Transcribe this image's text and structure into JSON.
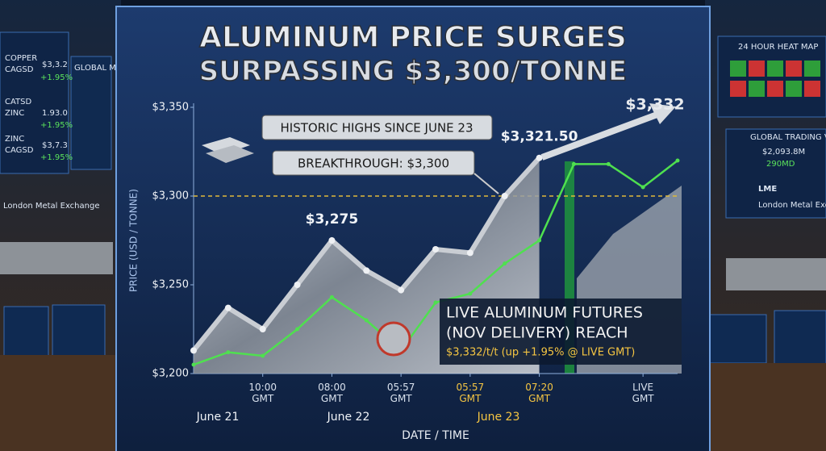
{
  "chart_data": {
    "type": "line",
    "title": "ALUMINUM PRICE SURGES",
    "subtitle": "SURPASSING $3,300/TONNE",
    "y_label": "PRICE (USD / TONNE)",
    "x_label": "DATE / TIME",
    "categories": [
      null,
      null,
      "10:00 GMT",
      null,
      "08:00 GMT",
      null,
      "05:57 GMT",
      null,
      "05:57 GMT",
      null,
      "07:20 GMT",
      null,
      null,
      "LIVE GMT",
      null
    ],
    "date_labels": [
      "June 21",
      "June 22",
      "June 23"
    ],
    "series": [
      {
        "color": "#c9cdd3",
        "values": [
          3213,
          3237,
          3225,
          3250,
          3275,
          3258,
          3247,
          3270,
          3268,
          3300,
          3321.5,
          null,
          null,
          null,
          null
        ],
        "value_labels": [
          null,
          null,
          null,
          null,
          "$3,275",
          null,
          null,
          null,
          null,
          null,
          "$3,321.50",
          null,
          null,
          null,
          null
        ]
      },
      {
        "color": "#4fe04f",
        "values": [
          3205,
          3212,
          3210,
          3225,
          3243,
          3230,
          3213,
          3240,
          3245,
          3262,
          3275,
          3318,
          3318,
          3305,
          3320
        ]
      }
    ],
    "threshold": 3300,
    "ylim": [
      3200,
      3350
    ],
    "yticks": [
      {
        "value": 3200,
        "label": "$3,200"
      },
      {
        "value": 3250,
        "label": "$3,250"
      },
      {
        "value": 3300,
        "label": "$3,300"
      },
      {
        "value": 3350,
        "label": "$3,350"
      }
    ],
    "annotations": {
      "historic": "HISTORIC HIGHS SINCE JUNE 23",
      "breakthrough": "BREAKTHROUGH: $3,300",
      "target": "$3,332",
      "live_1": "LIVE ALUMINUM FUTURES",
      "live_2": "(NOV DELIVERY) REACH",
      "live_3": "$3,332/t/t (up +1.95% @ LIVE GMT)"
    }
  },
  "left_panel": [
    "COPPER",
    "CAGSD",
    "$3,3.2",
    "+1.95%",
    "CATSD",
    "ZINC",
    "1.93.0",
    "+1.95%",
    "ZINC",
    "CAGSD",
    "$3,7.3",
    "+1.95%",
    "GLOBAL METAL",
    "London Metal Exchange"
  ],
  "right_panel": [
    "24 HOUR HEAT MAP",
    "GLOBAL TRADING VOLUME",
    "$2,093.8M",
    "290MD",
    "LME",
    "London Metal Exchange"
  ]
}
